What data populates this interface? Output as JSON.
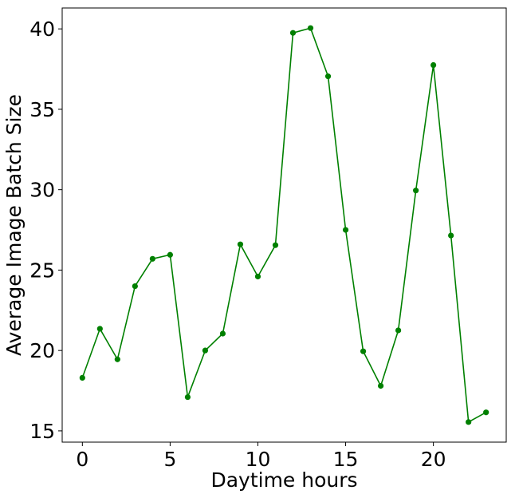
{
  "chart_data": {
    "type": "line",
    "title": "",
    "xlabel": "Daytime hours",
    "ylabel": "Average Image Batch Size",
    "xlim": [
      -1.15,
      24.15
    ],
    "ylim": [
      14.3,
      41.3
    ],
    "xticks": [
      0,
      5,
      10,
      15,
      20
    ],
    "yticks": [
      15,
      20,
      25,
      30,
      35,
      40
    ],
    "grid": false,
    "legend": "none",
    "color": "#008000",
    "marker": "circle",
    "series": [
      {
        "x": [
          0,
          1,
          2,
          3,
          4,
          5,
          6,
          7,
          8,
          9,
          10,
          11,
          12,
          13,
          14,
          15,
          16,
          17,
          18,
          19,
          20,
          21,
          22,
          23
        ],
        "y": [
          18.3,
          21.35,
          19.45,
          24.0,
          25.7,
          25.95,
          17.1,
          20.0,
          21.05,
          26.6,
          24.6,
          26.55,
          39.75,
          40.05,
          37.05,
          27.5,
          19.95,
          17.8,
          21.25,
          29.95,
          37.75,
          27.15,
          15.55,
          16.15
        ]
      }
    ]
  }
}
